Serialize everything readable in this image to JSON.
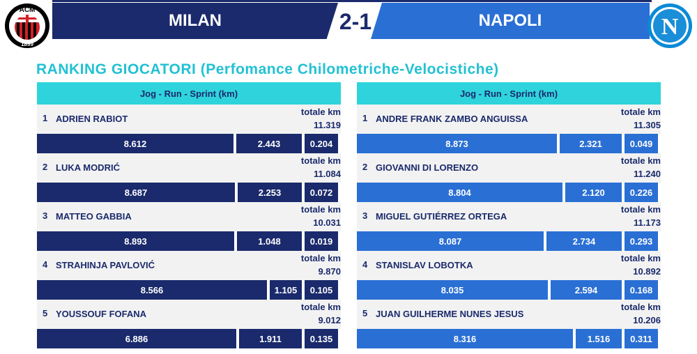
{
  "header": {
    "home_team": "MILAN",
    "away_team": "NAPOLI",
    "score": "2-1",
    "home_logo_text": "ACM",
    "home_logo_year": "1899",
    "away_logo_letter": "N"
  },
  "title": "RANKING GIOCATORI (Perfomance Chilometriche-Velocistiche)",
  "colors": {
    "home": "#1a2a6c",
    "away": "#2a6fd4",
    "accent": "#22c1d3"
  },
  "milan": {
    "header": "Jog - Run - Sprint (km)",
    "total_label": "totale km",
    "players": [
      {
        "rank": "1",
        "name": "ADRIEN RABIOT",
        "total": "11.319",
        "jog": "8.612",
        "run": "2.443",
        "sprint": "0.204"
      },
      {
        "rank": "2",
        "name": "LUKA MODRIĆ",
        "total": "11.084",
        "jog": "8.687",
        "run": "2.253",
        "sprint": "0.072"
      },
      {
        "rank": "3",
        "name": "MATTEO GABBIA",
        "total": "10.031",
        "jog": "8.893",
        "run": "1.048",
        "sprint": "0.019"
      },
      {
        "rank": "4",
        "name": "STRAHINJA PAVLOVIĆ",
        "total": "9.870",
        "jog": "8.566",
        "run": "1.105",
        "sprint": "0.105"
      },
      {
        "rank": "5",
        "name": "YOUSSOUF FOFANA",
        "total": "9.012",
        "jog": "6.886",
        "run": "1.911",
        "sprint": "0.135"
      }
    ]
  },
  "napoli": {
    "header": "Jog - Run - Sprint (km)",
    "total_label": "totale km",
    "players": [
      {
        "rank": "1",
        "name": "ANDRE FRANK ZAMBO ANGUISSA",
        "total": "11.305",
        "jog": "8.873",
        "run": "2.321",
        "sprint": "0.049"
      },
      {
        "rank": "2",
        "name": "GIOVANNI DI LORENZO",
        "total": "11.240",
        "jog": "8.804",
        "run": "2.120",
        "sprint": "0.226"
      },
      {
        "rank": "3",
        "name": "MIGUEL GUTIÉRREZ ORTEGA",
        "total": "11.173",
        "jog": "8.087",
        "run": "2.734",
        "sprint": "0.293"
      },
      {
        "rank": "4",
        "name": "STANISLAV LOBOTKA",
        "total": "10.892",
        "jog": "8.035",
        "run": "2.594",
        "sprint": "0.168"
      },
      {
        "rank": "5",
        "name": "JUAN GUILHERME NUNES JESUS",
        "total": "10.206",
        "jog": "8.316",
        "run": "1.516",
        "sprint": "0.311"
      }
    ]
  }
}
